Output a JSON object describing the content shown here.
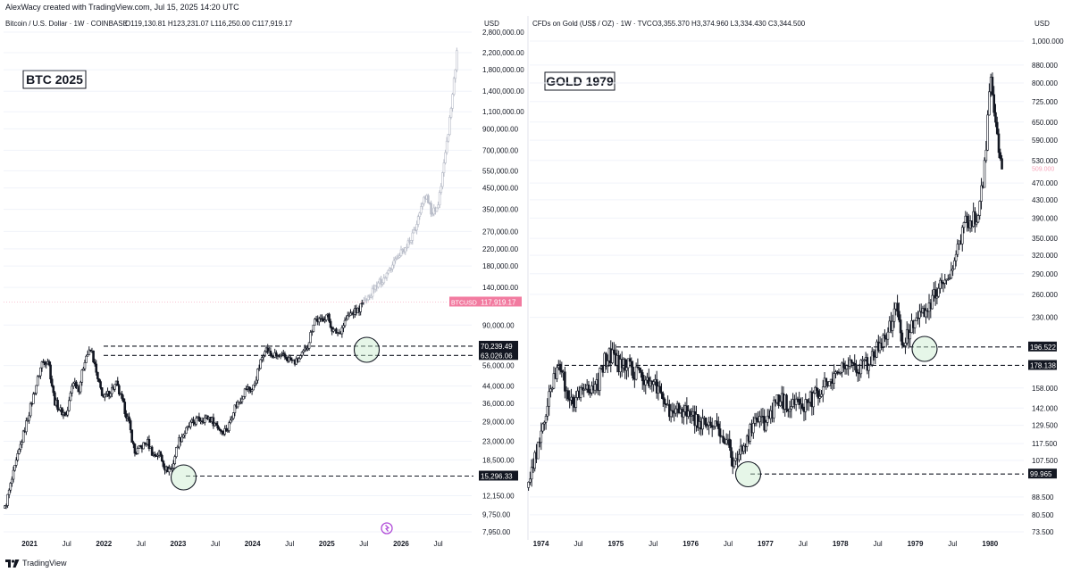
{
  "header": "AlexWacy created with TradingView.com, Jul 15, 2025 14:20 UTC",
  "footer": {
    "logo_text": "TradingView",
    "logo_icon": "tradingview-logo-icon"
  },
  "chart_data": [
    {
      "type": "candlestick",
      "scale": "log",
      "title": "Bitcoin / U.S. Dollar · 1W · COINBASE",
      "ohlc_text": "O119,130.81  H123,231.07  L116,250.00  C117,919.17",
      "currency": "USD",
      "label_box": "BTC 2025",
      "y_ticks": [
        "2,800,000.00",
        "2,200,000.00",
        "1,800,000.00",
        "1,400,000.00",
        "1,100,000.00",
        "900,000.00",
        "700,000.00",
        "550,000.00",
        "450,000.00",
        "350,000.00",
        "270,000.00",
        "220,000.00",
        "180,000.00",
        "140,000.00",
        "90,000.00",
        "56,000.00",
        "44,000.00",
        "36,000.00",
        "29,000.00",
        "23,000.00",
        "18,500.00",
        "12,150.00",
        "9,750.00",
        "7,950.00"
      ],
      "x_ticks": [
        "2021",
        "Jul",
        "2022",
        "Jul",
        "2023",
        "Jul",
        "2024",
        "Jul",
        "2025",
        "Jul",
        "2026",
        "Jul"
      ],
      "price_badge": {
        "symbol": "BTCUSD",
        "value": "117,919.17"
      },
      "levels": [
        {
          "label": "70,239.49",
          "value": 70239.49
        },
        {
          "label": "63,026.06",
          "value": 63026.06
        },
        {
          "label": "15,296.33",
          "value": 15296.33
        }
      ],
      "path": [
        [
          "2020-09",
          10500
        ],
        [
          "2020-12",
          25000
        ],
        [
          "2021-01",
          33000
        ],
        [
          "2021-03",
          58000
        ],
        [
          "2021-04",
          60000
        ],
        [
          "2021-05",
          37000
        ],
        [
          "2021-06",
          33000
        ],
        [
          "2021-07",
          31000
        ],
        [
          "2021-08",
          47000
        ],
        [
          "2021-09",
          43000
        ],
        [
          "2021-10",
          62000
        ],
        [
          "2021-11",
          67000
        ],
        [
          "2021-12",
          47000
        ],
        [
          "2022-01",
          38000
        ],
        [
          "2022-03",
          45000
        ],
        [
          "2022-05",
          29000
        ],
        [
          "2022-06",
          20000
        ],
        [
          "2022-08",
          23000
        ],
        [
          "2022-09",
          19500
        ],
        [
          "2022-10",
          20000
        ],
        [
          "2022-11",
          16500
        ],
        [
          "2022-12",
          16800
        ],
        [
          "2023-01",
          23000
        ],
        [
          "2023-03",
          28000
        ],
        [
          "2023-04",
          29500
        ],
        [
          "2023-06",
          30500
        ],
        [
          "2023-08",
          26000
        ],
        [
          "2023-09",
          26500
        ],
        [
          "2023-10",
          34000
        ],
        [
          "2023-11",
          37500
        ],
        [
          "2023-12",
          43000
        ],
        [
          "2024-01",
          42000
        ],
        [
          "2024-03",
          69000
        ],
        [
          "2024-04",
          63000
        ],
        [
          "2024-06",
          62000
        ],
        [
          "2024-08",
          58000
        ],
        [
          "2024-09",
          63000
        ],
        [
          "2024-10",
          72000
        ],
        [
          "2024-11",
          97000
        ],
        [
          "2024-12",
          94000
        ],
        [
          "2025-01",
          102000
        ],
        [
          "2025-02",
          84000
        ],
        [
          "2025-03",
          82000
        ],
        [
          "2025-04",
          95000
        ],
        [
          "2025-05",
          104000
        ],
        [
          "2025-06",
          107000
        ],
        [
          "2025-07",
          118000
        ]
      ],
      "projection": [
        [
          "2025-07",
          118000
        ],
        [
          "2025-09",
          140000
        ],
        [
          "2025-11",
          170000
        ],
        [
          "2026-01",
          210000
        ],
        [
          "2026-03",
          260000
        ],
        [
          "2026-04",
          340000
        ],
        [
          "2026-05",
          420000
        ],
        [
          "2026-06",
          330000
        ],
        [
          "2026-07",
          380000
        ],
        [
          "2026-08",
          600000
        ],
        [
          "2026-09",
          1100000
        ],
        [
          "2026-10",
          2200000
        ]
      ]
    },
    {
      "type": "candlestick",
      "scale": "log",
      "title": "CFDs on Gold (US$ / OZ) · 1W · TVC",
      "ohlc_text": "O3,355.370  H3,374.960  L3,334.430  C3,344.500",
      "currency": "USD",
      "label_box": "GOLD 1979",
      "y_ticks": [
        "1,000.000",
        "880.000",
        "800.000",
        "725.000",
        "650.000",
        "590.000",
        "530.000",
        "470.000",
        "430.000",
        "390.000",
        "350.000",
        "320.000",
        "290.000",
        "260.000",
        "230.000",
        "158.000",
        "142.000",
        "129.500",
        "117.500",
        "107.500",
        "88.500",
        "80.500",
        "73.500"
      ],
      "x_ticks": [
        "1974",
        "Jul",
        "1975",
        "Jul",
        "1976",
        "Jul",
        "1977",
        "Jul",
        "1978",
        "Jul",
        "1979",
        "Jul",
        "1980"
      ],
      "price_badge": {
        "symbol": "",
        "value": "509.000"
      },
      "levels": [
        {
          "label": "196.522",
          "value": 196.522
        },
        {
          "label": "178.138",
          "value": 178.138
        },
        {
          "label": "99.965",
          "value": 99.965
        }
      ],
      "path": [
        [
          "1973-11",
          93
        ],
        [
          "1974-01",
          125
        ],
        [
          "1974-03",
          170
        ],
        [
          "1974-04",
          175
        ],
        [
          "1974-06",
          145
        ],
        [
          "1974-08",
          155
        ],
        [
          "1974-10",
          160
        ],
        [
          "1974-11",
          180
        ],
        [
          "1974-12",
          190
        ],
        [
          "1975-01",
          180
        ],
        [
          "1975-03",
          178
        ],
        [
          "1975-05",
          168
        ],
        [
          "1975-07",
          165
        ],
        [
          "1975-09",
          140
        ],
        [
          "1975-10",
          142
        ],
        [
          "1975-12",
          138
        ],
        [
          "1976-02",
          132
        ],
        [
          "1976-03",
          130
        ],
        [
          "1976-05",
          127
        ],
        [
          "1976-07",
          118
        ],
        [
          "1976-08",
          104
        ],
        [
          "1976-09",
          114
        ],
        [
          "1976-11",
          130
        ],
        [
          "1977-01",
          132
        ],
        [
          "1977-03",
          148
        ],
        [
          "1977-05",
          145
        ],
        [
          "1977-07",
          143
        ],
        [
          "1977-09",
          152
        ],
        [
          "1977-11",
          162
        ],
        [
          "1978-01",
          173
        ],
        [
          "1978-03",
          180
        ],
        [
          "1978-04",
          174
        ],
        [
          "1978-06",
          185
        ],
        [
          "1978-08",
          205
        ],
        [
          "1978-10",
          240
        ],
        [
          "1978-11",
          196
        ],
        [
          "1978-12",
          215
        ],
        [
          "1979-01",
          230
        ],
        [
          "1979-03",
          240
        ],
        [
          "1979-05",
          275
        ],
        [
          "1979-07",
          295
        ],
        [
          "1979-09",
          390
        ],
        [
          "1979-10",
          385
        ],
        [
          "1979-11",
          400
        ],
        [
          "1979-12",
          480
        ],
        [
          "1980-01",
          830
        ],
        [
          "1980-02",
          640
        ],
        [
          "1980-03",
          480
        ]
      ]
    }
  ]
}
